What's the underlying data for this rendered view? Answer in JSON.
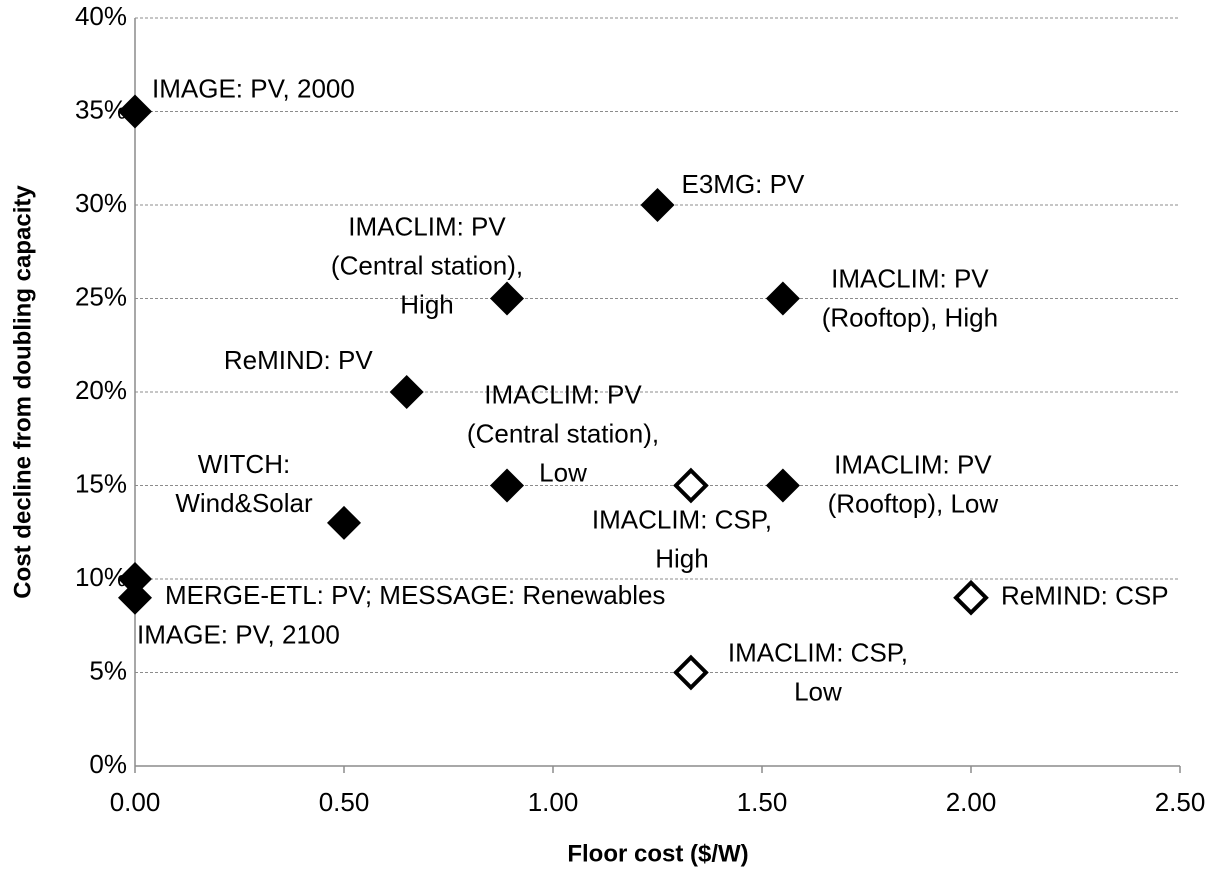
{
  "chart_data": {
    "type": "scatter",
    "xlabel": "Floor cost ($/W)",
    "ylabel": "Cost decline from doubling capacity",
    "xlim": [
      0,
      2.5
    ],
    "ylim": [
      0,
      40
    ],
    "xticks": [
      {
        "value": 0,
        "label": "0.00"
      },
      {
        "value": 0.5,
        "label": "0.50"
      },
      {
        "value": 1,
        "label": "1.00"
      },
      {
        "value": 1.5,
        "label": "1.50"
      },
      {
        "value": 2,
        "label": "2.00"
      },
      {
        "value": 2.5,
        "label": "2.50"
      }
    ],
    "yticks": [
      {
        "value": 0,
        "label": "0%"
      },
      {
        "value": 5,
        "label": "5%"
      },
      {
        "value": 10,
        "label": "10%"
      },
      {
        "value": 15,
        "label": "15%"
      },
      {
        "value": 20,
        "label": "20%"
      },
      {
        "value": 25,
        "label": "25%"
      },
      {
        "value": 30,
        "label": "30%"
      },
      {
        "value": 35,
        "label": "35%"
      },
      {
        "value": 40,
        "label": "40%"
      }
    ],
    "grid": true,
    "series": [
      {
        "color": "#000000",
        "fill": "filled",
        "x": [
          0,
          1.25,
          0.89,
          1.55,
          0.65,
          0.89,
          1.55,
          0.5,
          0,
          0
        ],
        "values": [
          35,
          30,
          25,
          25,
          20,
          15,
          15,
          13,
          10,
          9
        ],
        "point_labels": [
          [
            "IMAGE: PV, 2000"
          ],
          [
            "E3MG: PV"
          ],
          [
            "IMACLIM: PV",
            "(Central station),",
            "High"
          ],
          [
            "IMACLIM: PV",
            "(Rooftop), High"
          ],
          [
            "ReMIND: PV"
          ],
          [
            "IMACLIM: PV",
            "(Central station),",
            "Low"
          ],
          [
            "IMACLIM: PV",
            "(Rooftop), Low"
          ],
          [
            "WITCH:",
            "Wind&Solar"
          ],
          [
            "MERGE-ETL: PV; MESSAGE: Renewables"
          ],
          [
            "IMAGE: PV, 2100"
          ]
        ]
      },
      {
        "color": "#000000",
        "fill": "open",
        "x": [
          1.33,
          2,
          1.33
        ],
        "values": [
          15,
          9,
          5
        ],
        "point_labels": [
          [
            "IMACLIM: CSP,",
            "High"
          ],
          [
            "ReMIND: CSP"
          ],
          [
            "IMACLIM: CSP,",
            "Low"
          ]
        ]
      }
    ]
  }
}
